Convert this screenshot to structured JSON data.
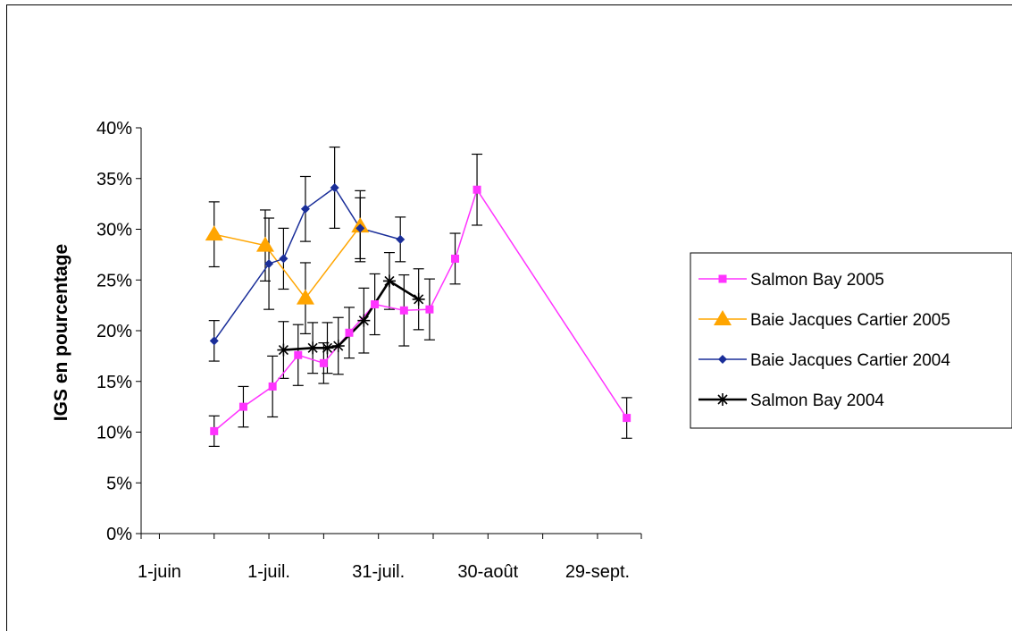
{
  "chart_data": {
    "type": "line",
    "title": "",
    "xlabel": "",
    "ylabel": "IGS en pourcentage",
    "ylim": [
      0,
      0.4
    ],
    "yticks": [
      0,
      0.05,
      0.1,
      0.15,
      0.2,
      0.25,
      0.3,
      0.35,
      0.4
    ],
    "ytick_labels": [
      "0%",
      "5%",
      "10%",
      "15%",
      "20%",
      "25%",
      "30%",
      "35%",
      "40%"
    ],
    "xlim": [
      "2005-05-27",
      "2005-10-11"
    ],
    "xticks": [
      "2005-06-01",
      "2005-07-01",
      "2005-07-31",
      "2005-08-30",
      "2005-09-29"
    ],
    "xtick_labels": [
      "1-juin",
      "1-juil.",
      "31-juil.",
      "30-août",
      "29-sept."
    ],
    "minor_xticks": [
      "2005-05-27",
      "2005-06-16",
      "2005-07-16",
      "2005-08-15",
      "2005-09-14",
      "2005-10-14"
    ],
    "grid": false,
    "legend_position": "right",
    "series": [
      {
        "name": "Salmon Bay 2005",
        "color": "#ff33ff",
        "marker": "square",
        "x": [
          "2005-06-16",
          "2005-06-24",
          "2005-07-02",
          "2005-07-09",
          "2005-07-16",
          "2005-07-23",
          "2005-07-30",
          "2005-08-07",
          "2005-08-14",
          "2005-08-21",
          "2005-08-27",
          "2005-10-07"
        ],
        "y": [
          0.101,
          0.125,
          0.145,
          0.176,
          0.168,
          0.198,
          0.226,
          0.22,
          0.221,
          0.271,
          0.339,
          0.114
        ],
        "err": [
          0.015,
          0.02,
          0.03,
          0.03,
          0.02,
          0.025,
          0.03,
          0.035,
          0.03,
          0.025,
          0.035,
          0.02
        ]
      },
      {
        "name": "Baie Jacques Cartier 2005",
        "color": "#ffa500",
        "marker": "triangle",
        "x": [
          "2005-06-16",
          "2005-06-30",
          "2005-07-11",
          "2005-07-26"
        ],
        "y": [
          0.295,
          0.284,
          0.232,
          0.303
        ],
        "err": [
          0.032,
          0.035,
          0.035,
          0.035
        ]
      },
      {
        "name": "Baie Jacques Cartier 2004",
        "color": "#1a2e99",
        "marker": "diamond",
        "x": [
          "2005-06-16",
          "2005-07-01",
          "2005-07-05",
          "2005-07-11",
          "2005-07-19",
          "2005-07-26",
          "2005-08-06"
        ],
        "y": [
          0.19,
          0.266,
          0.271,
          0.32,
          0.341,
          0.301,
          0.29
        ],
        "err": [
          0.02,
          0.045,
          0.03,
          0.032,
          0.04,
          0.03,
          0.022
        ]
      },
      {
        "name": "Salmon Bay 2004",
        "color": "#000000",
        "marker": "asterisk",
        "x": [
          "2005-07-05",
          "2005-07-13",
          "2005-07-17",
          "2005-07-20",
          "2005-07-27",
          "2005-08-03",
          "2005-08-11"
        ],
        "y": [
          0.181,
          0.183,
          0.183,
          0.185,
          0.21,
          0.249,
          0.231
        ],
        "err": [
          0.028,
          0.025,
          0.025,
          0.028,
          0.032,
          0.028,
          0.03
        ]
      }
    ]
  }
}
